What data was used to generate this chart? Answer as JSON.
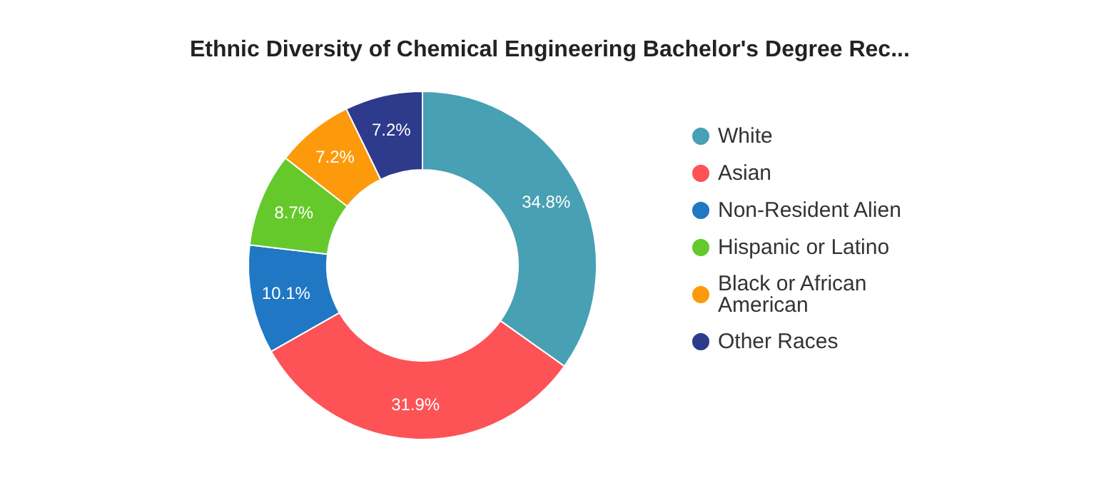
{
  "chart_data": {
    "type": "donut",
    "title": "Ethnic Diversity of Chemical Engineering Bachelor's Degree Rec...",
    "categories": [
      "White",
      "Asian",
      "Non-Resident Alien",
      "Hispanic or Latino",
      "Black or African American",
      "Other Races"
    ],
    "values": [
      34.8,
      31.9,
      10.1,
      8.7,
      7.2,
      7.2
    ],
    "colors": [
      "#48a0b4",
      "#fd5356",
      "#2077c4",
      "#65c92c",
      "#fd9a0c",
      "#2e3a8c"
    ],
    "value_labels": [
      "34.8%",
      "31.9%",
      "10.1%",
      "8.7%",
      "7.2%",
      "7.2%"
    ],
    "legend": "right"
  }
}
